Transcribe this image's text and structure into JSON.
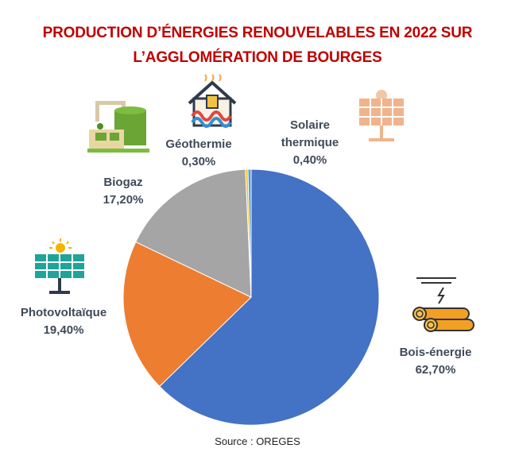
{
  "title_line1": "PRODUCTION D’ÉNERGIES RENOUVELABLES EN 2022 SUR",
  "title_line2": "L’AGGLOMÉRATION DE BOURGES",
  "source": "Source : OREGES",
  "colors": {
    "Bois-énergie": "#4472c4",
    "Photovoltaïque": "#ed7d31",
    "Biogaz": "#a5a5a5",
    "Géothermie": "#ffc000",
    "Solaire thermique": "#5b9bd5",
    "title": "#c00000",
    "label": "#3f4a5a"
  },
  "labels": {
    "bois": {
      "name": "Bois-énergie",
      "value": "62,70%"
    },
    "pv": {
      "name": "Photovoltaïque",
      "value": "19,40%"
    },
    "biogaz": {
      "name": "Biogaz",
      "value": "17,20%"
    },
    "geo": {
      "name": "Géothermie",
      "value": "0,30%"
    },
    "solaire": {
      "name1": "Solaire",
      "name2": "thermique",
      "value": "0,40%"
    }
  },
  "chart_data": {
    "type": "pie",
    "title": "PRODUCTION D’ÉNERGIES RENOUVELABLES EN 2022 SUR L’AGGLOMÉRATION DE BOURGES",
    "categories": [
      "Bois-énergie",
      "Photovoltaïque",
      "Biogaz",
      "Géothermie",
      "Solaire thermique"
    ],
    "values": [
      62.7,
      19.4,
      17.2,
      0.3,
      0.4
    ],
    "unit": "%",
    "icons": [
      "wood-logs-icon",
      "solar-panel-icon",
      "biogas-plant-icon",
      "geothermal-house-icon",
      "solar-thermal-icon"
    ]
  }
}
